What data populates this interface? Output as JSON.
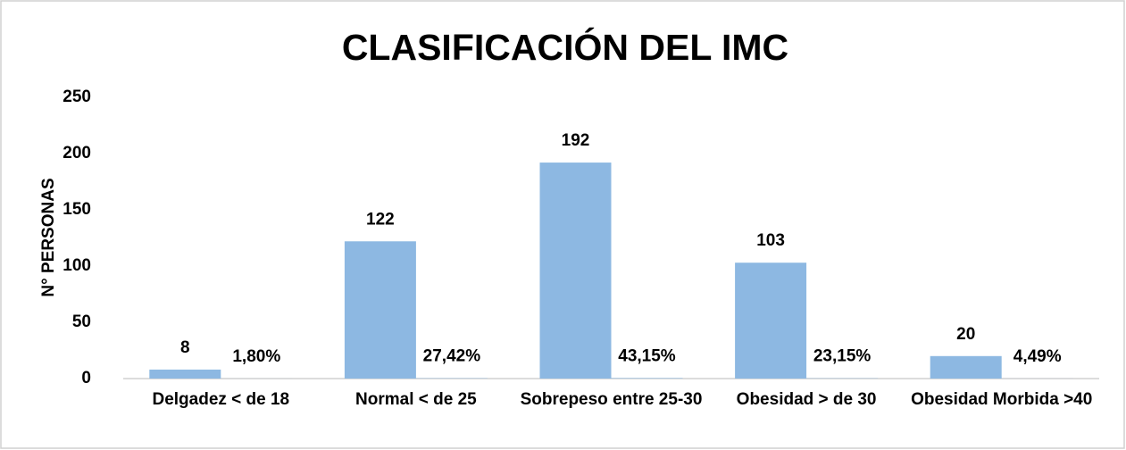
{
  "chart_data": {
    "type": "bar",
    "title": "CLASIFICACIÓN DEL IMC",
    "y_label": "N° PERSONAS",
    "categories": [
      "Delgadez < de 18",
      "Normal < de 25",
      "Sobrepeso entre 25-30",
      "Obesidad > de 30",
      "Obesidad Morbida >40"
    ],
    "series": [
      {
        "color": "#8db8e2",
        "values": [
          8,
          122,
          192,
          103,
          20
        ]
      },
      {
        "color": "#8db8e2",
        "values": [
          0.018,
          0.2742,
          0.4315,
          0.2315,
          0.0449
        ],
        "value_labels": [
          "1,80%",
          "27,42%",
          "43,15%",
          "23,15%",
          "4,49%"
        ]
      }
    ],
    "ylim": [
      0,
      250
    ],
    "yticks": [
      0,
      50,
      100,
      150,
      200,
      250
    ],
    "grid": false
  }
}
